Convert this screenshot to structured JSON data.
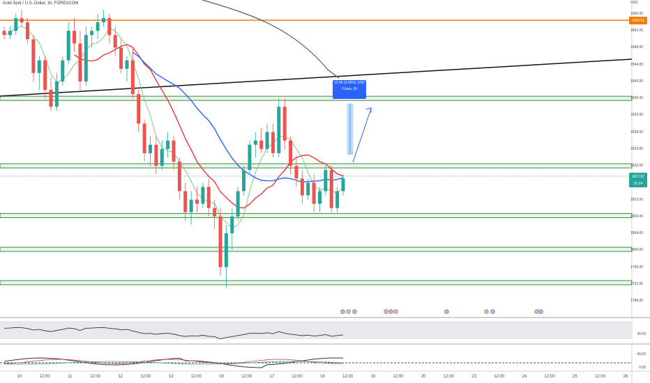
{
  "symbol": "Gold Spot / U.S. Dollar, 1h, FOREXCOM",
  "price_axis": [
    "1856.00",
    "1852.00",
    "1848.00",
    "1844.00",
    "1840.00",
    "1836.00",
    "1832.00",
    "1828.00",
    "1824.00",
    "1820.00",
    "1816.00",
    "1812.00",
    "1808.00",
    "1804.00",
    "1800.00",
    "1796.00",
    "1792.00",
    "1788.00"
  ],
  "price_axis_top": "USD",
  "resistance_tag": "1854.51",
  "current_price_tag": "1817.57",
  "countdown_tag": "31:24",
  "time_axis": [
    "10",
    "12:00",
    "11",
    "12:00",
    "12",
    "12:00",
    "13",
    "12:00",
    "16",
    "12:00",
    "17",
    "12:00",
    "18",
    "12:00",
    "19",
    "12:00",
    "20",
    "12:00",
    "23",
    "12:00",
    "24",
    "12:00",
    "25",
    "12:00",
    "26"
  ],
  "measure": {
    "line1": "12.56 (0.69%) 1256",
    "line2": "3 bars, 3h"
  },
  "indicator1_label": "40.00",
  "indicator2_labels": [
    "40.00",
    "0.00"
  ],
  "colors": {
    "up": "#26a69a",
    "down": "#ef5350",
    "ma_red": "#e53935",
    "ma_green": "#81c784",
    "ma_blue": "#2962ff",
    "ma_slate": "#4a5a8a",
    "zone": "#2e7d32",
    "resistance": "#f57c00"
  },
  "chart_data": {
    "type": "candlestick",
    "title": "Gold Spot / U.S. Dollar, 1h, FOREXCOM",
    "ylim": [
      1785,
      1858
    ],
    "horizontal_levels": [
      1854.51,
      1836.0,
      1820.0,
      1808.2,
      1800.2,
      1792.3
    ],
    "trendline": {
      "from": 1838.5,
      "to": 1844.8
    },
    "projection": {
      "from": 1820.5,
      "to": 1832.0
    },
    "candles": [
      [
        1852,
        1853,
        1850,
        1851
      ],
      [
        1851,
        1853,
        1850,
        1852
      ],
      [
        1852,
        1856,
        1851,
        1855
      ],
      [
        1855,
        1857,
        1853,
        1854
      ],
      [
        1854,
        1855,
        1849,
        1850
      ],
      [
        1850,
        1851,
        1840,
        1842
      ],
      [
        1842,
        1846,
        1838,
        1845
      ],
      [
        1845,
        1846,
        1836,
        1838
      ],
      [
        1838,
        1841,
        1833,
        1834
      ],
      [
        1834,
        1842,
        1833,
        1840
      ],
      [
        1840,
        1846,
        1839,
        1845
      ],
      [
        1845,
        1854,
        1844,
        1852
      ],
      [
        1852,
        1855,
        1847,
        1849
      ],
      [
        1849,
        1852,
        1838,
        1840
      ],
      [
        1840,
        1853,
        1839,
        1851
      ],
      [
        1851,
        1853,
        1848,
        1852
      ],
      [
        1852,
        1856,
        1850,
        1854
      ],
      [
        1854,
        1857,
        1853,
        1855
      ],
      [
        1855,
        1856,
        1849,
        1851
      ],
      [
        1851,
        1853,
        1846,
        1848
      ],
      [
        1848,
        1850,
        1842,
        1843
      ],
      [
        1843,
        1846,
        1840,
        1845
      ],
      [
        1845,
        1848,
        1836,
        1837
      ],
      [
        1837,
        1838,
        1828,
        1830
      ],
      [
        1830,
        1831,
        1821,
        1823
      ],
      [
        1823,
        1827,
        1820,
        1825
      ],
      [
        1825,
        1827,
        1818,
        1820
      ],
      [
        1820,
        1826,
        1819,
        1824
      ],
      [
        1824,
        1828,
        1822,
        1826
      ],
      [
        1826,
        1827,
        1819,
        1821
      ],
      [
        1821,
        1822,
        1812,
        1814
      ],
      [
        1814,
        1816,
        1807,
        1809
      ],
      [
        1809,
        1814,
        1806,
        1812
      ],
      [
        1812,
        1815,
        1809,
        1811
      ],
      [
        1811,
        1816,
        1810,
        1815
      ],
      [
        1815,
        1817,
        1808,
        1810
      ],
      [
        1810,
        1812,
        1805,
        1808
      ],
      [
        1808,
        1810,
        1794,
        1796
      ],
      [
        1796,
        1806,
        1791,
        1804
      ],
      [
        1804,
        1810,
        1800,
        1808
      ],
      [
        1808,
        1815,
        1807,
        1814
      ],
      [
        1814,
        1820,
        1813,
        1819
      ],
      [
        1819,
        1826,
        1818,
        1825
      ],
      [
        1825,
        1828,
        1822,
        1826
      ],
      [
        1826,
        1829,
        1823,
        1824
      ],
      [
        1824,
        1830,
        1823,
        1828
      ],
      [
        1828,
        1830,
        1822,
        1823
      ],
      [
        1823,
        1836,
        1822,
        1834
      ],
      [
        1834,
        1836,
        1824,
        1826
      ],
      [
        1826,
        1827,
        1818,
        1820
      ],
      [
        1820,
        1822,
        1815,
        1817
      ],
      [
        1817,
        1819,
        1811,
        1813
      ],
      [
        1813,
        1817,
        1812,
        1816
      ],
      [
        1816,
        1818,
        1809,
        1811
      ],
      [
        1811,
        1815,
        1809,
        1814
      ],
      [
        1814,
        1820,
        1813,
        1819
      ],
      [
        1819,
        1820,
        1809,
        1810
      ],
      [
        1810,
        1815,
        1809,
        1814
      ],
      [
        1814,
        1818,
        1813,
        1817
      ]
    ]
  }
}
